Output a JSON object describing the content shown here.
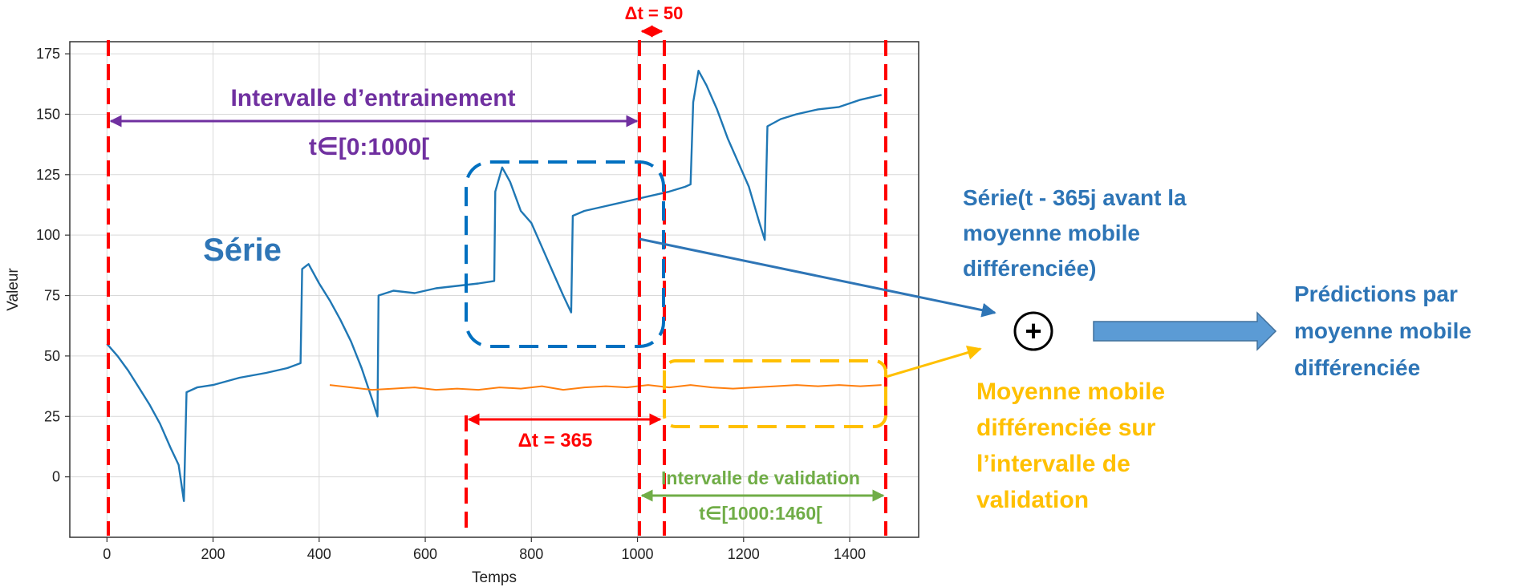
{
  "chart_data": {
    "type": "line",
    "xlabel": "Temps",
    "ylabel": "Valeur",
    "xlim": [
      -70,
      1530
    ],
    "ylim": [
      -25,
      180
    ],
    "xticks": [
      0,
      200,
      400,
      600,
      800,
      1000,
      1200,
      1400
    ],
    "yticks": [
      0,
      25,
      50,
      75,
      100,
      125,
      150,
      175
    ],
    "grid": true,
    "series": [
      {
        "color": "#1f77b4",
        "points": [
          [
            0,
            55
          ],
          [
            20,
            50
          ],
          [
            40,
            44
          ],
          [
            60,
            37
          ],
          [
            80,
            30
          ],
          [
            100,
            22
          ],
          [
            120,
            12
          ],
          [
            135,
            5
          ],
          [
            145,
            -10
          ],
          [
            150,
            35
          ],
          [
            170,
            37
          ],
          [
            200,
            38
          ],
          [
            250,
            41
          ],
          [
            300,
            43
          ],
          [
            340,
            45
          ],
          [
            365,
            47
          ],
          [
            368,
            86
          ],
          [
            380,
            88
          ],
          [
            400,
            80
          ],
          [
            420,
            73
          ],
          [
            440,
            65
          ],
          [
            460,
            56
          ],
          [
            480,
            45
          ],
          [
            500,
            32
          ],
          [
            510,
            25
          ],
          [
            512,
            75
          ],
          [
            540,
            77
          ],
          [
            580,
            76
          ],
          [
            620,
            78
          ],
          [
            660,
            79
          ],
          [
            700,
            80
          ],
          [
            730,
            81
          ],
          [
            732,
            118
          ],
          [
            745,
            128
          ],
          [
            760,
            122
          ],
          [
            780,
            110
          ],
          [
            800,
            105
          ],
          [
            820,
            95
          ],
          [
            840,
            85
          ],
          [
            860,
            75
          ],
          [
            875,
            68
          ],
          [
            878,
            108
          ],
          [
            900,
            110
          ],
          [
            940,
            112
          ],
          [
            980,
            114
          ],
          [
            1020,
            116
          ],
          [
            1060,
            118
          ],
          [
            1090,
            120
          ],
          [
            1100,
            121
          ],
          [
            1105,
            155
          ],
          [
            1115,
            168
          ],
          [
            1130,
            162
          ],
          [
            1150,
            152
          ],
          [
            1170,
            140
          ],
          [
            1190,
            130
          ],
          [
            1210,
            120
          ],
          [
            1230,
            105
          ],
          [
            1240,
            98
          ],
          [
            1245,
            145
          ],
          [
            1270,
            148
          ],
          [
            1300,
            150
          ],
          [
            1340,
            152
          ],
          [
            1380,
            153
          ],
          [
            1420,
            156
          ],
          [
            1460,
            158
          ]
        ]
      },
      {
        "color": "#ff7f0e",
        "points": [
          [
            420,
            38
          ],
          [
            460,
            37
          ],
          [
            500,
            36
          ],
          [
            540,
            36.5
          ],
          [
            580,
            37
          ],
          [
            620,
            36
          ],
          [
            660,
            36.5
          ],
          [
            700,
            36
          ],
          [
            740,
            37
          ],
          [
            780,
            36.5
          ],
          [
            820,
            37.5
          ],
          [
            860,
            36
          ],
          [
            900,
            37
          ],
          [
            940,
            37.5
          ],
          [
            980,
            37
          ],
          [
            1020,
            38
          ],
          [
            1060,
            37
          ],
          [
            1100,
            38
          ],
          [
            1140,
            37
          ],
          [
            1180,
            36.5
          ],
          [
            1220,
            37
          ],
          [
            1260,
            37.5
          ],
          [
            1300,
            38
          ],
          [
            1340,
            37.5
          ],
          [
            1380,
            38
          ],
          [
            1420,
            37.5
          ],
          [
            1460,
            38
          ]
        ]
      }
    ]
  },
  "annotations": {
    "dt50": "Δt = 50",
    "training_title": "Intervalle d’entrainement",
    "training_range": "t∈[0:1000[",
    "serie_label": "Série",
    "dt365": "Δt = 365",
    "validation_title": "Intervalle de validation",
    "validation_range": "t∈[1000:1460[",
    "plus_symbol": "+",
    "lagged_series_lines": [
      "Série(t - 365j avant la",
      "moyenne mobile",
      "différenciée)"
    ],
    "moving_avg_lines": [
      "Moyenne mobile",
      "différenciée sur",
      "l’intervalle de",
      "validation"
    ],
    "predictions_lines": [
      "Prédictions par",
      "moyenne mobile",
      "différenciée"
    ]
  },
  "colors": {
    "series_blue": "#1f77b4",
    "average_orange": "#ff7f0e",
    "marker_red": "#ff0000",
    "training_purple": "#7030a0",
    "dashed_blue": "#0070c0",
    "callout_blue": "#2e75b6",
    "validation_green": "#70ad47",
    "callout_gold": "#ffc000",
    "arrow_fill": "#5b9bd5"
  }
}
